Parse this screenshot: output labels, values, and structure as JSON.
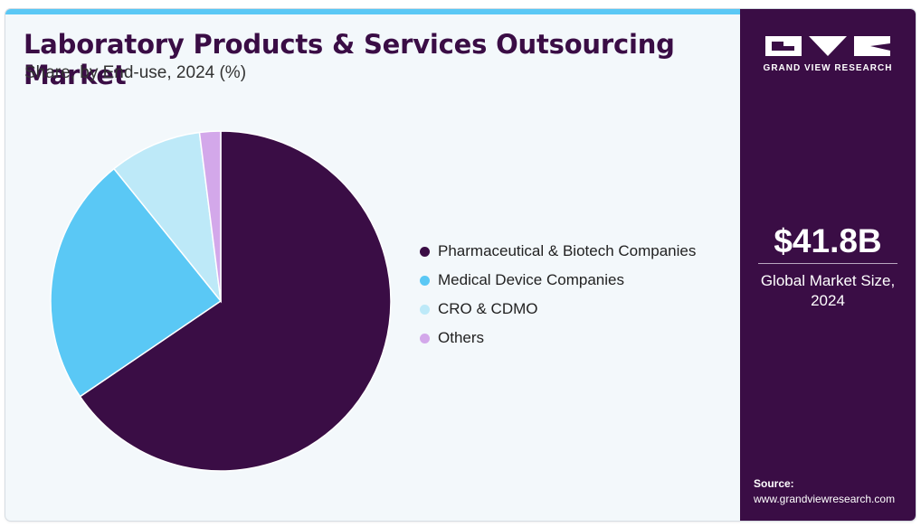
{
  "header": {
    "title": "Laboratory Products & Services Outsourcing Market",
    "subtitle": "Share, by End-use, 2024 (%)"
  },
  "chart_data": {
    "type": "pie",
    "title": "Laboratory Products & Services Outsourcing Market",
    "subtitle": "Share, by End-use, 2024 (%)",
    "categories": [
      "Pharmaceutical & Biotech Companies",
      "Medical Device Companies",
      "CRO & CDMO",
      "Others"
    ],
    "values": [
      65.5,
      23.7,
      8.8,
      2.0
    ],
    "colors": [
      "#3a0d45",
      "#5ac8f5",
      "#bde9f8",
      "#d3a8ea"
    ],
    "start_angle_deg": 0,
    "direction": "clockwise",
    "legend_position": "right"
  },
  "sidebar": {
    "brand": "GRAND VIEW RESEARCH",
    "market_size": "$41.8B",
    "market_label_line1": "Global Market Size,",
    "market_label_line2": "2024",
    "source_label": "Source:",
    "source_url": "www.grandviewresearch.com"
  }
}
